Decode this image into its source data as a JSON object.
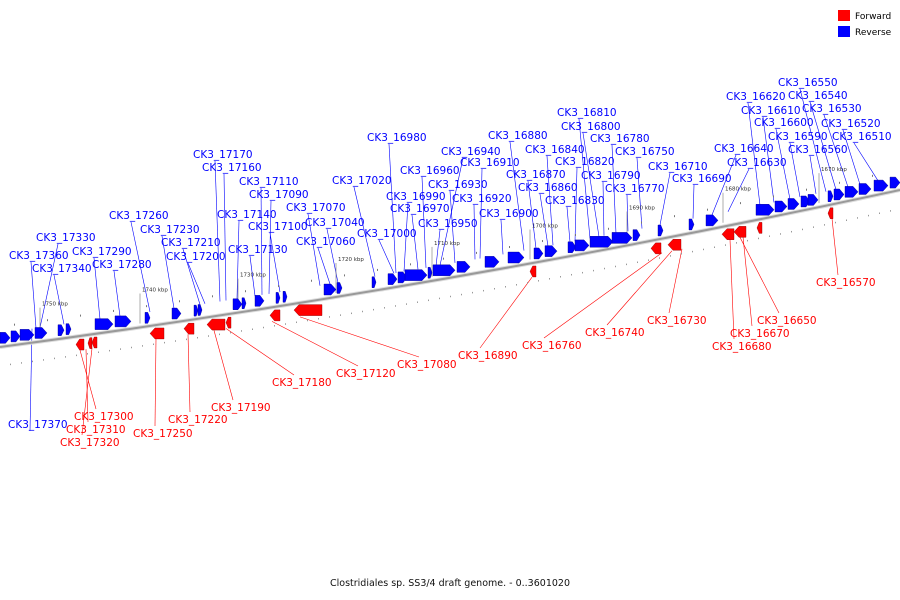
{
  "caption": "Clostridiales sp. SS3/4 draft genome. - 0..3601020",
  "legend": [
    {
      "label": "Forward",
      "color": "#ff0000"
    },
    {
      "label": "Reverse",
      "color": "#0000ff"
    }
  ],
  "colors": {
    "forward": "#ff0000",
    "reverse": "#0000ff",
    "backbone": "#999999"
  },
  "ticks": [
    "1750 kbp",
    "1740 kbp",
    "1730 kbp",
    "1720 kbp",
    "1710 kbp",
    "1700 kbp",
    "1690 kbp",
    "1680 kbp",
    "1670 kbp"
  ],
  "reverse_labels": [
    "CK3_17370",
    "CK3_17360",
    "CK3_17340",
    "CK3_17330",
    "CK3_17290",
    "CK3_17280",
    "CK3_17260",
    "CK3_17230",
    "CK3_17210",
    "CK3_17200",
    "CK3_17170",
    "CK3_17160",
    "CK3_17140",
    "CK3_17130",
    "CK3_17110",
    "CK3_17100",
    "CK3_17090",
    "CK3_17070",
    "CK3_17060",
    "CK3_17040",
    "CK3_17020",
    "CK3_17000",
    "CK3_16990",
    "CK3_16980",
    "CK3_16970",
    "CK3_16960",
    "CK3_16950",
    "CK3_16940",
    "CK3_16930",
    "CK3_16920",
    "CK3_16910",
    "CK3_16900",
    "CK3_16880",
    "CK3_16870",
    "CK3_16860",
    "CK3_16840",
    "CK3_16830",
    "CK3_16820",
    "CK3_16810",
    "CK3_16800",
    "CK3_16790",
    "CK3_16780",
    "CK3_16770",
    "CK3_16750",
    "CK3_16710",
    "CK3_16690",
    "CK3_16640",
    "CK3_16630",
    "CK3_16620",
    "CK3_16610",
    "CK3_16600",
    "CK3_16590",
    "CK3_16560",
    "CK3_16550",
    "CK3_16540",
    "CK3_16530",
    "CK3_16520",
    "CK3_16510"
  ],
  "forward_labels": [
    "CK3_17300",
    "CK3_17310",
    "CK3_17320",
    "CK3_17250",
    "CK3_17220",
    "CK3_17190",
    "CK3_17180",
    "CK3_17120",
    "CK3_17080",
    "CK3_16890",
    "CK3_16760",
    "CK3_16740",
    "CK3_16730",
    "CK3_16650",
    "CK3_16670",
    "CK3_16680",
    "CK3_16570"
  ]
}
